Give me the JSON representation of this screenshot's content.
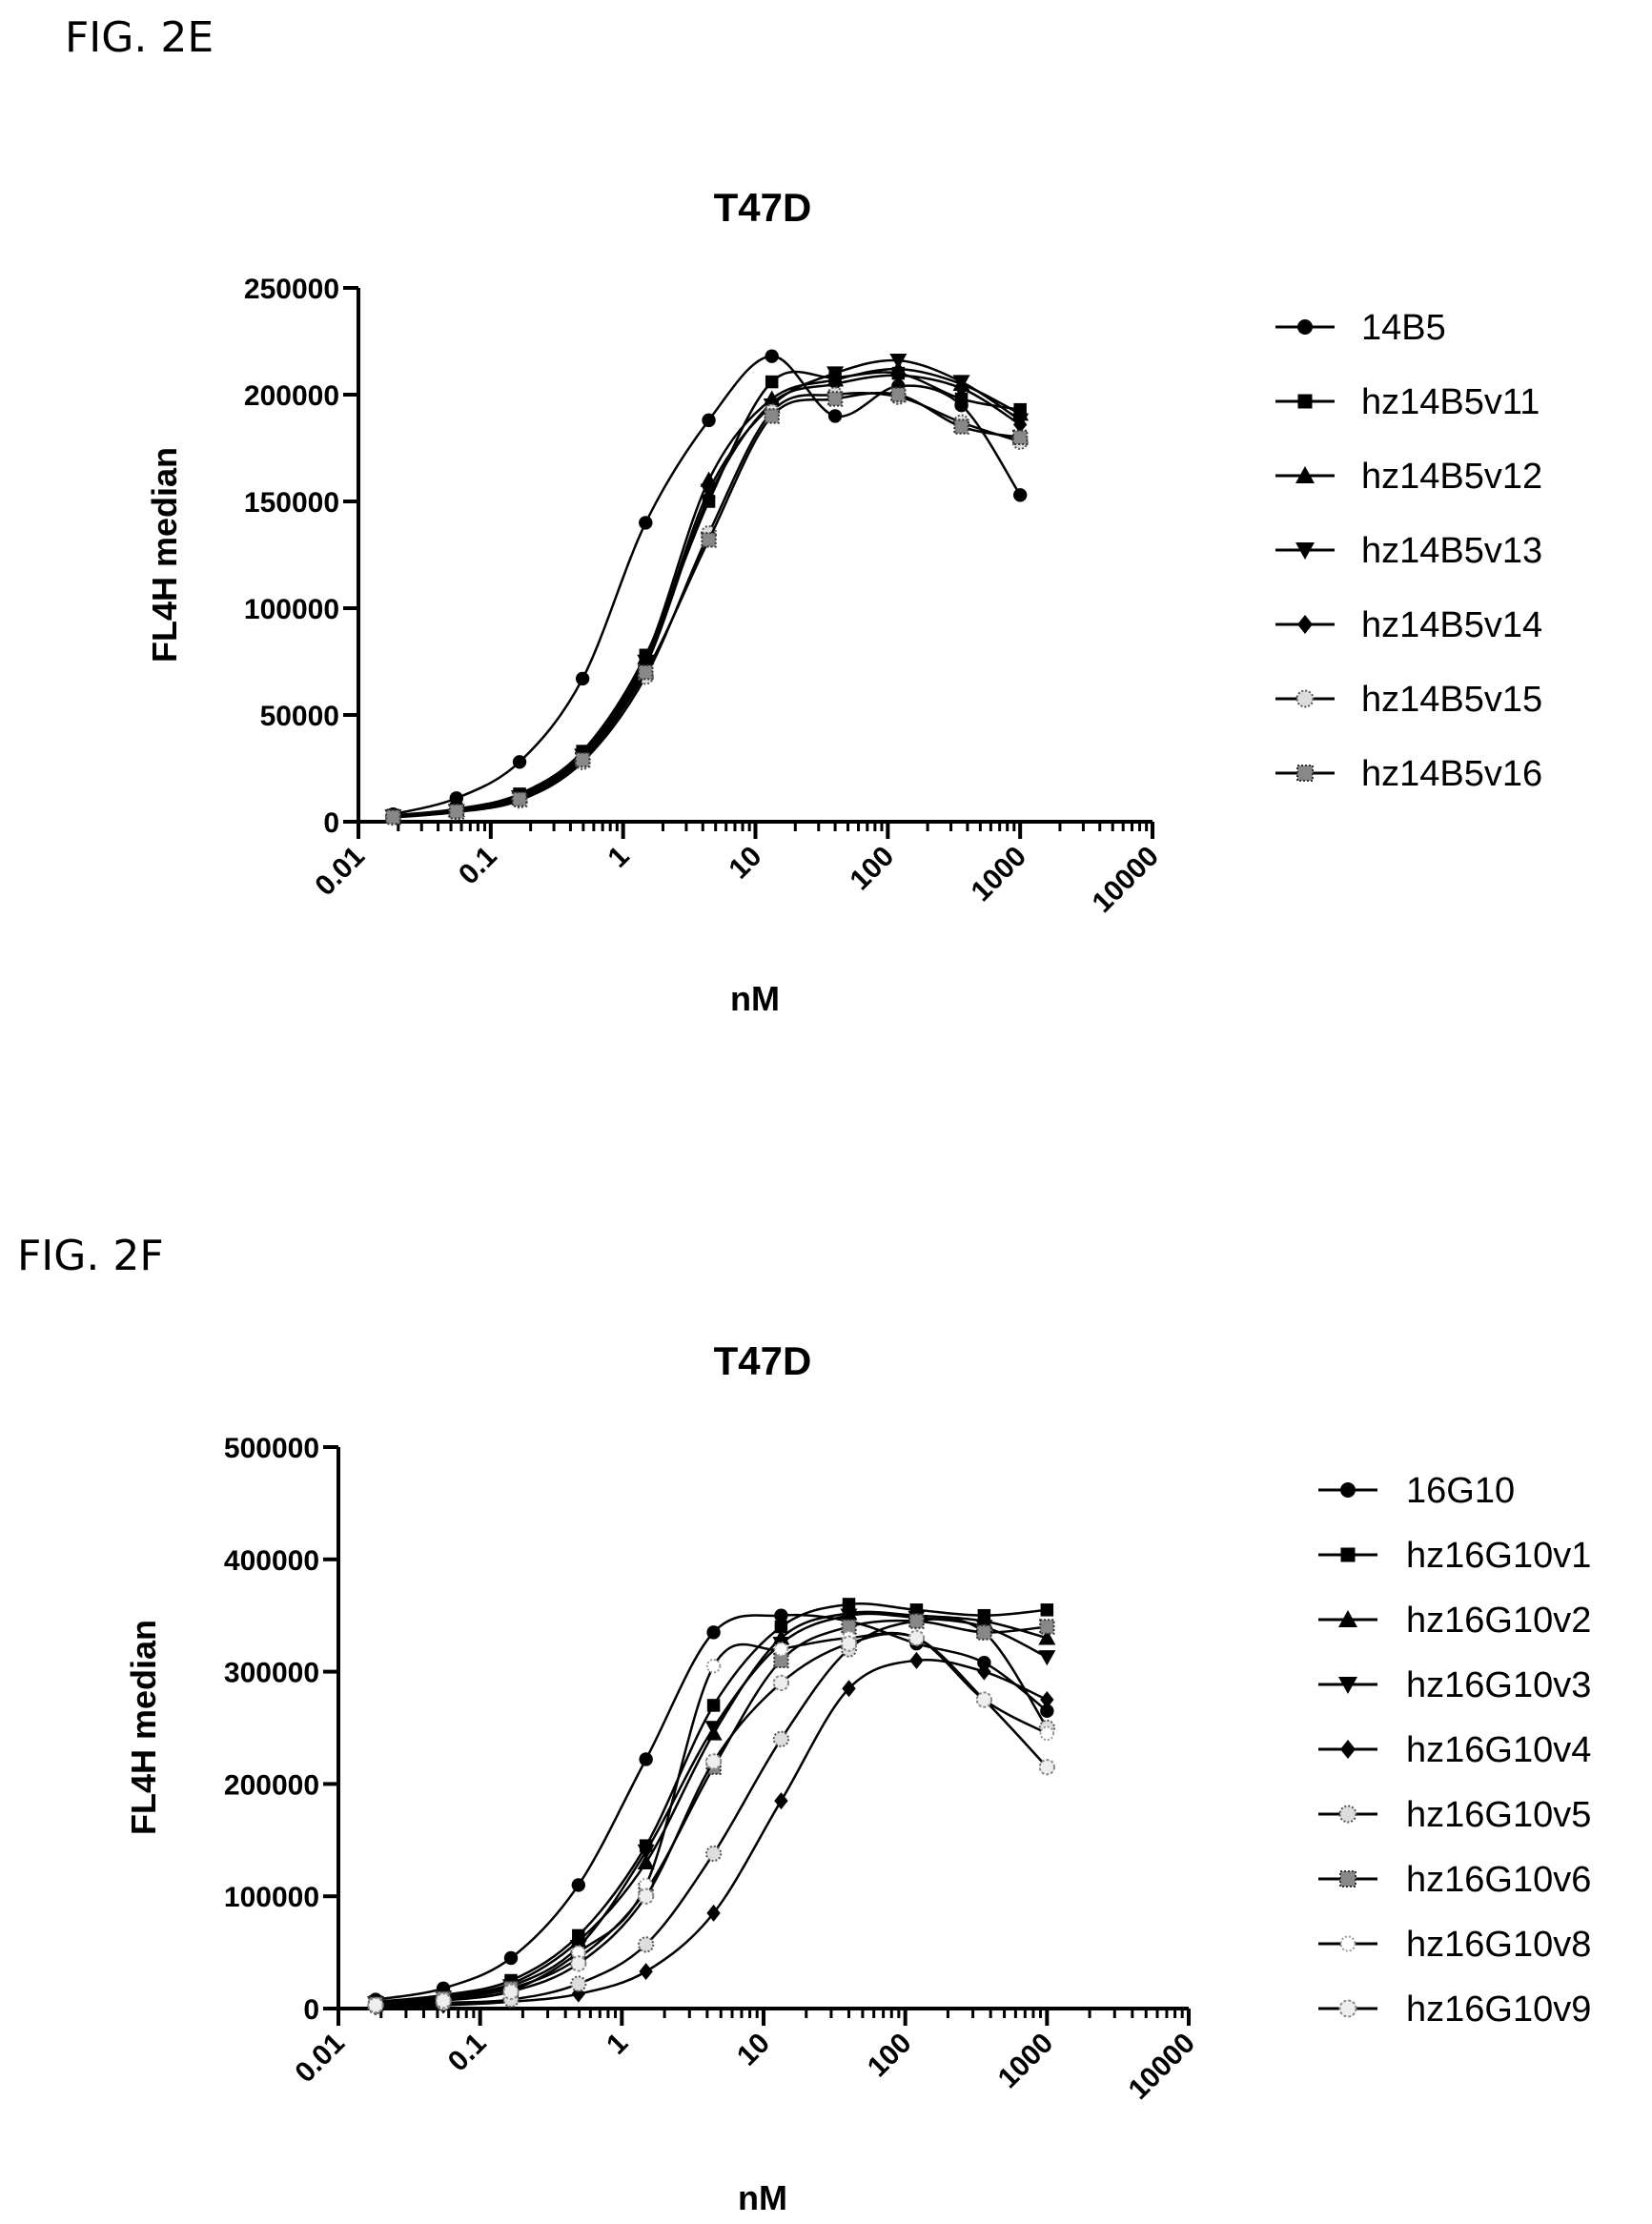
{
  "figures": [
    {
      "label": "FIG. 2E"
    },
    {
      "label": "FIG. 2F"
    }
  ],
  "chart_data": [
    {
      "type": "scatter",
      "title": "T47D",
      "xlabel": "nM",
      "ylabel": "FL4H median",
      "xscale": "log",
      "xlim": [
        0.01,
        10000
      ],
      "ylim": [
        0,
        250000
      ],
      "xticks": [
        0.01,
        0.1,
        1,
        10,
        100,
        1000,
        10000
      ],
      "xtick_labels": [
        "0.01",
        "0.1",
        "1",
        "10",
        "100",
        "1000",
        "10000"
      ],
      "yticks": [
        0,
        50000,
        100000,
        150000,
        200000,
        250000
      ],
      "ytick_labels": [
        "0",
        "50000",
        "100000",
        "150000",
        "200000",
        "250000"
      ],
      "legend_position": "right",
      "fitted_curves": true,
      "x": [
        0.0183,
        0.055,
        0.165,
        0.494,
        1.48,
        4.44,
        13.3,
        40,
        120,
        360,
        1000
      ],
      "series": [
        {
          "name": "14B5",
          "marker": "circle",
          "values": [
            3500,
            11000,
            28000,
            67000,
            140000,
            188000,
            218000,
            190000,
            204000,
            195000,
            153000
          ]
        },
        {
          "name": "hz14B5v11",
          "marker": "square",
          "values": [
            3000,
            6000,
            13000,
            33000,
            78000,
            150000,
            206000,
            208000,
            210000,
            198000,
            193000
          ]
        },
        {
          "name": "hz14B5v12",
          "marker": "triangle-up",
          "values": [
            2800,
            5500,
            12000,
            32000,
            77000,
            160000,
            198000,
            207000,
            212000,
            205000,
            191000
          ]
        },
        {
          "name": "hz14B5v13",
          "marker": "triangle-down",
          "values": [
            2500,
            5000,
            11500,
            31000,
            75000,
            155000,
            195000,
            210000,
            216000,
            206000,
            188000
          ]
        },
        {
          "name": "hz14B5v14",
          "marker": "diamond",
          "values": [
            2500,
            5000,
            11000,
            30000,
            73000,
            152000,
            196000,
            205000,
            209000,
            203000,
            186000
          ]
        },
        {
          "name": "hz14B5v15",
          "marker": "star-circle",
          "values": [
            2000,
            4500,
            10000,
            28000,
            68000,
            135000,
            192000,
            200000,
            199000,
            187000,
            178000
          ]
        },
        {
          "name": "hz14B5v16",
          "marker": "star-square",
          "values": [
            2200,
            4800,
            10500,
            29000,
            70000,
            132000,
            190000,
            198000,
            200000,
            185000,
            180000
          ]
        }
      ]
    },
    {
      "type": "scatter",
      "title": "T47D",
      "xlabel": "nM",
      "ylabel": "FL4H median",
      "xscale": "log",
      "xlim": [
        0.01,
        10000
      ],
      "ylim": [
        0,
        500000
      ],
      "xticks": [
        0.01,
        0.1,
        1,
        10,
        100,
        1000,
        10000
      ],
      "xtick_labels": [
        "0.01",
        "0.1",
        "1",
        "10",
        "100",
        "1000",
        "10000"
      ],
      "yticks": [
        0,
        100000,
        200000,
        300000,
        400000,
        500000
      ],
      "ytick_labels": [
        "0",
        "100000",
        "200000",
        "300000",
        "400000",
        "500000"
      ],
      "legend_position": "right",
      "fitted_curves": true,
      "x": [
        0.0183,
        0.055,
        0.165,
        0.494,
        1.48,
        4.44,
        13.3,
        40,
        120,
        360,
        1000
      ],
      "series": [
        {
          "name": "16G10",
          "marker": "circle",
          "values": [
            8000,
            18000,
            45000,
            110000,
            222000,
            335000,
            350000,
            345000,
            325000,
            308000,
            265000
          ]
        },
        {
          "name": "hz16G10v1",
          "marker": "square",
          "values": [
            6000,
            12000,
            25000,
            65000,
            145000,
            270000,
            340000,
            360000,
            355000,
            350000,
            355000
          ]
        },
        {
          "name": "hz16G10v2",
          "marker": "triangle-up",
          "values": [
            5000,
            11000,
            22000,
            60000,
            130000,
            245000,
            330000,
            352000,
            350000,
            345000,
            330000
          ]
        },
        {
          "name": "hz16G10v3",
          "marker": "triangle-down",
          "values": [
            5000,
            10000,
            20000,
            55000,
            140000,
            250000,
            325000,
            350000,
            348000,
            340000,
            313000
          ]
        },
        {
          "name": "hz16G10v4",
          "marker": "diamond",
          "values": [
            1500,
            3000,
            6000,
            13000,
            33000,
            85000,
            185000,
            285000,
            310000,
            300000,
            275000
          ]
        },
        {
          "name": "hz16G10v5",
          "marker": "star-circle",
          "values": [
            2000,
            5000,
            8000,
            22000,
            57000,
            138000,
            240000,
            320000,
            345000,
            335000,
            250000
          ]
        },
        {
          "name": "hz16G10v6",
          "marker": "star-square",
          "values": [
            4000,
            9000,
            18000,
            45000,
            105000,
            215000,
            310000,
            340000,
            345000,
            335000,
            340000
          ]
        },
        {
          "name": "hz16G10v8",
          "marker": "star-light",
          "values": [
            3000,
            8000,
            16000,
            50000,
            110000,
            305000,
            320000,
            330000,
            330000,
            275000,
            245000
          ]
        },
        {
          "name": "hz16G10v9",
          "marker": "star-circle-light",
          "values": [
            3000,
            7000,
            15000,
            40000,
            100000,
            220000,
            290000,
            325000,
            330000,
            275000,
            215000
          ]
        }
      ]
    }
  ]
}
